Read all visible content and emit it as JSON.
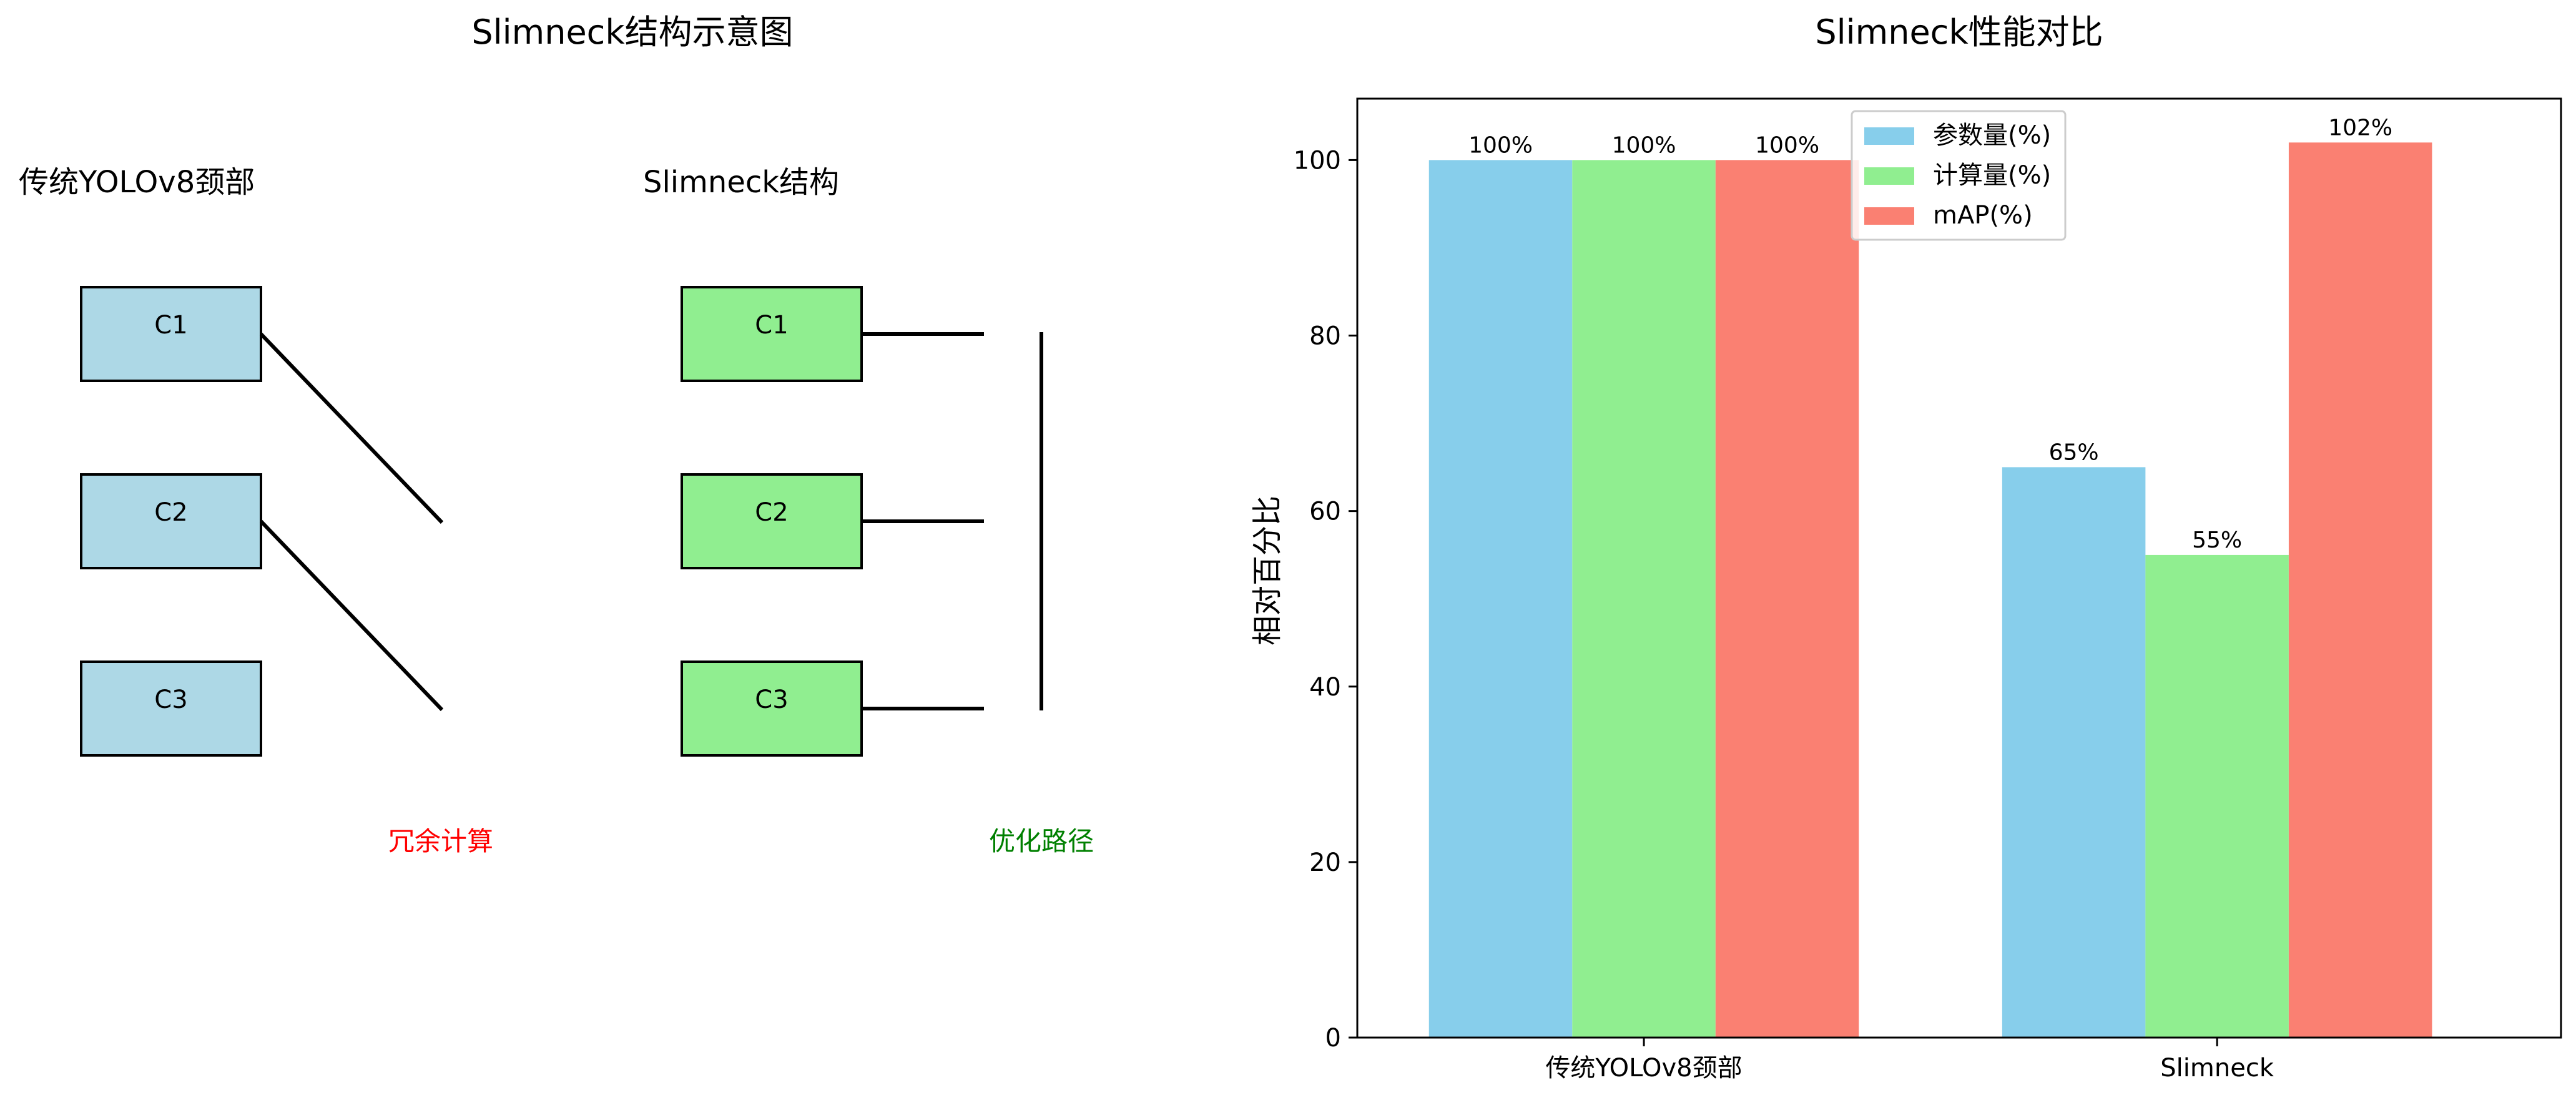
{
  "diagram": {
    "title": "Slimneck结构示意图",
    "left_group": {
      "label": "传统YOLOv8颈部",
      "boxes": [
        "C1",
        "C2",
        "C3"
      ],
      "fill": "#add8e6",
      "annotation": "冗余计算",
      "annotation_color": "#ff0000"
    },
    "right_group": {
      "label": "Slimneck结构",
      "boxes": [
        "C1",
        "C2",
        "C3"
      ],
      "fill": "#90ee90",
      "annotation": "优化路径",
      "annotation_color": "#008000"
    }
  },
  "chart_data": {
    "type": "bar",
    "title": "Slimneck性能对比",
    "xlabel": "",
    "ylabel": "相对百分比",
    "ylim": [
      0,
      107
    ],
    "yticks": [
      0,
      20,
      40,
      60,
      80,
      100
    ],
    "categories": [
      "传统YOLOv8颈部",
      "Slimneck"
    ],
    "series": [
      {
        "name": "参数量(%)",
        "color": "#87ceeb",
        "values": [
          100,
          65
        ],
        "labels": [
          "100%",
          "65%"
        ]
      },
      {
        "name": "计算量(%)",
        "color": "#90ee90",
        "values": [
          100,
          55
        ],
        "labels": [
          "100%",
          "55%"
        ]
      },
      {
        "name": "mAP(%)",
        "color": "#fa8072",
        "values": [
          100,
          102
        ],
        "labels": [
          "100%",
          "102%"
        ]
      }
    ],
    "legend_position": "top-center",
    "grid": false
  }
}
